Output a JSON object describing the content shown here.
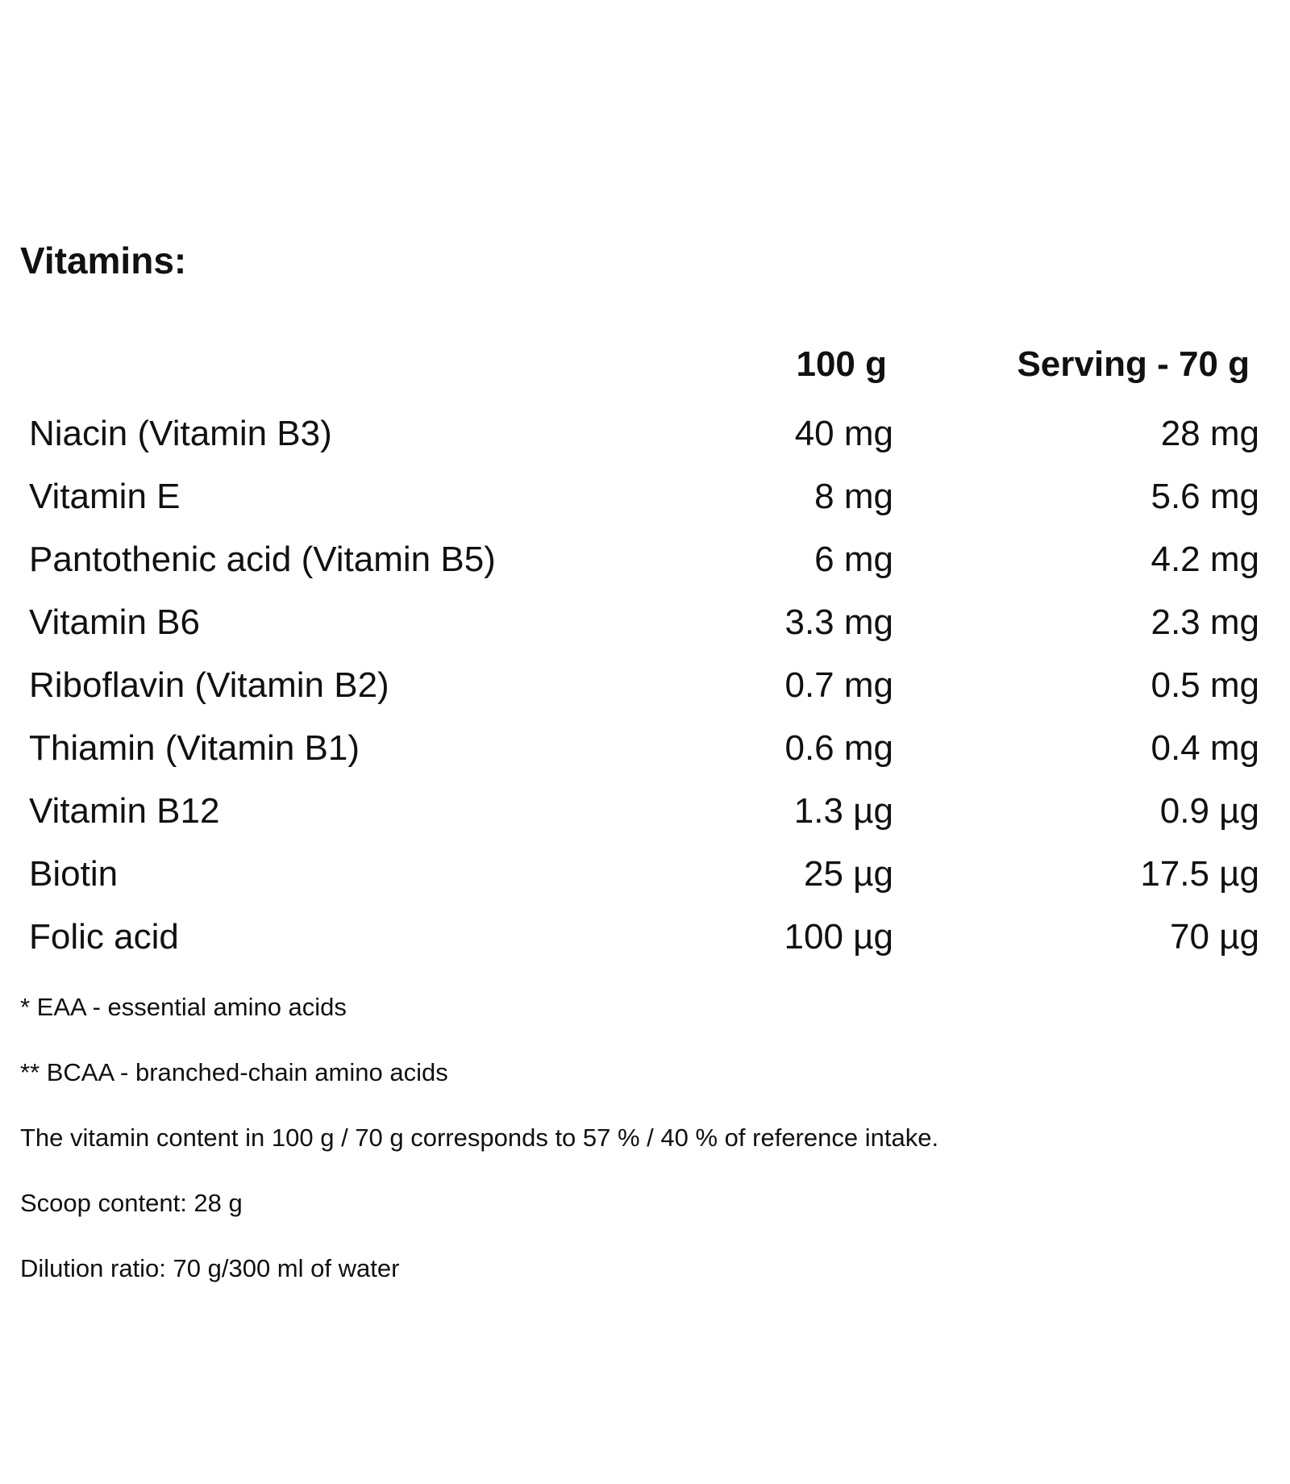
{
  "title": "Vitamins:",
  "columns": {
    "per_100g": "100 g",
    "per_serving": "Serving - 70 g"
  },
  "rows": [
    {
      "name": "Niacin (Vitamin B3)",
      "per_100g": "40 mg",
      "per_serving": "28 mg"
    },
    {
      "name": "Vitamin E",
      "per_100g": "8 mg",
      "per_serving": "5.6 mg"
    },
    {
      "name": "Pantothenic acid (Vitamin B5)",
      "per_100g": "6 mg",
      "per_serving": "4.2 mg"
    },
    {
      "name": "Vitamin B6",
      "per_100g": "3.3 mg",
      "per_serving": "2.3 mg"
    },
    {
      "name": "Riboflavin (Vitamin B2)",
      "per_100g": "0.7 mg",
      "per_serving": "0.5 mg"
    },
    {
      "name": "Thiamin (Vitamin B1)",
      "per_100g": "0.6 mg",
      "per_serving": "0.4 mg"
    },
    {
      "name": "Vitamin B12",
      "per_100g": "1.3 µg",
      "per_serving": "0.9 µg"
    },
    {
      "name": "Biotin",
      "per_100g": "25 µg",
      "per_serving": "17.5 µg"
    },
    {
      "name": "Folic acid",
      "per_100g": "100 µg",
      "per_serving": "70 µg"
    }
  ],
  "notes": [
    "* EAA - essential amino acids",
    "** BCAA - branched-chain amino acids",
    "The vitamin content in 100 g / 70 g corresponds to 57 % / 40 % of reference intake.",
    "Scoop content: 28 g",
    "Dilution ratio: 70 g/300 ml of water"
  ]
}
